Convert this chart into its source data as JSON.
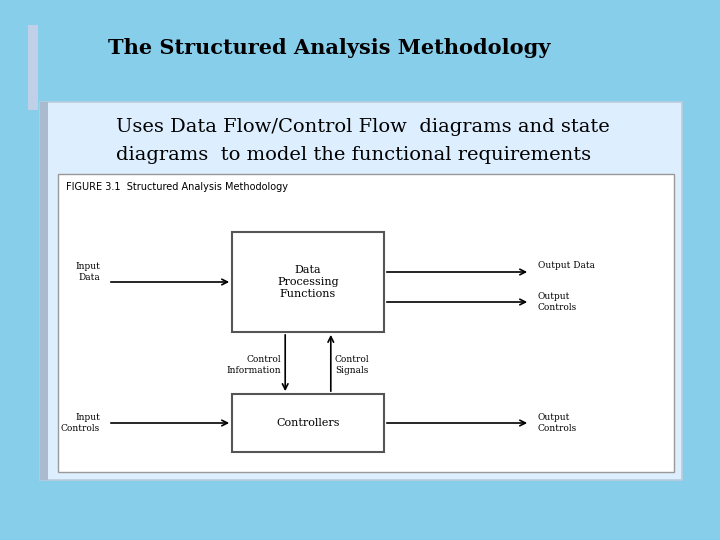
{
  "bg_color": "#87CEEB",
  "title": "The Structured Analysis Methodology",
  "title_fontsize": 15,
  "body_text_line1": "Uses Data Flow/Control Flow  diagrams and state",
  "body_text_line2": "diagrams  to model the functional requirements",
  "body_fontsize": 14,
  "figure_caption": "FIGURE 3.1  Structured Analysis Methodology",
  "figure_caption_fontsize": 7,
  "box1_label": "Data\nProcessing\nFunctions",
  "box2_label": "Controllers",
  "left_label1": "Input\nData",
  "left_label2": "Input\nControls",
  "right_label1": "Output Data",
  "right_label2": "Output\nControls",
  "right_label3": "Output\nControls",
  "mid_label1": "Control\nInformation",
  "mid_label2": "Control\nSignals",
  "text_color": "#000000",
  "panel_bg": "#DDEEFF",
  "panel_edge": "#AABBCC",
  "accent_bar_color": "#C0D8EE",
  "diagram_bg": "#FFFFFF",
  "box_color": "#FFFFFF",
  "box_edge": "#555555"
}
